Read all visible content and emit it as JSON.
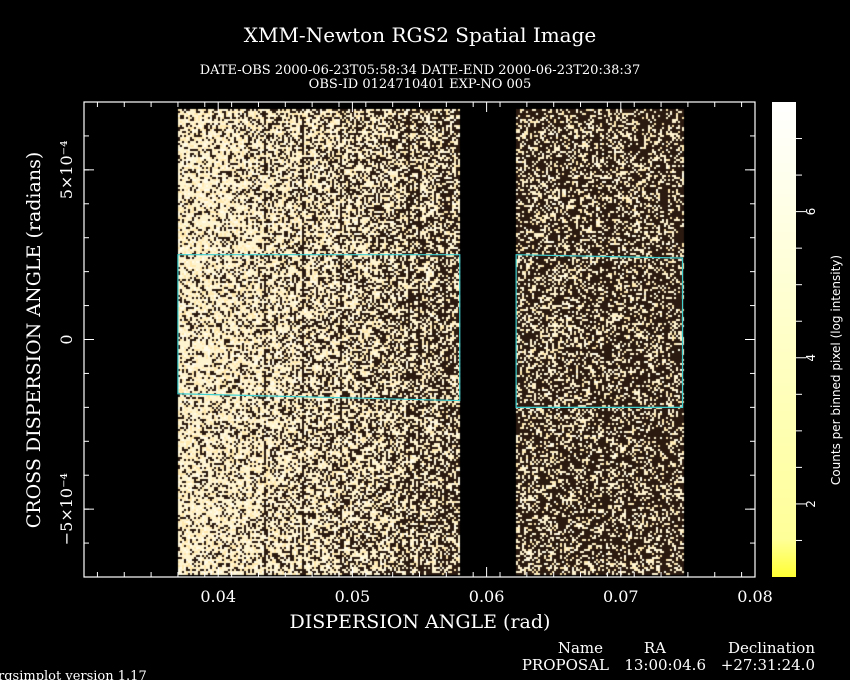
{
  "title": "XMM-Newton  RGS2 Spatial Image",
  "subtitle_line1": "DATE-OBS 2000-06-23T05:58:34   DATE-END 2000-06-23T20:38:37",
  "subtitle_line2": "OBS-ID 0124710401 EXP-NO 005",
  "version": "rgsimplot version 1.17",
  "info_table": {
    "headers": [
      "Name",
      "RA",
      "Declination"
    ],
    "row": [
      "PROPOSAL",
      "13:00:04.6",
      "+27:31:24.0"
    ],
    "row_color": "#40e0e0"
  },
  "chart_data": {
    "type": "heatmap",
    "xlabel": "DISPERSION ANGLE (rad)",
    "ylabel": "CROSS DISPERSION ANGLE (radians)",
    "xlim": [
      0.03,
      0.08
    ],
    "ylim": [
      -0.0007,
      0.0007
    ],
    "x_ticks": [
      0.04,
      0.05,
      0.06,
      0.07,
      0.08
    ],
    "x_tick_labels": [
      "0.04",
      "0.05",
      "0.06",
      "0.07",
      "0.08"
    ],
    "y_ticks": [
      -0.0005,
      0,
      0.0005
    ],
    "y_tick_labels": [
      "−5×10⁻⁴",
      "0",
      "5×10⁻⁴"
    ],
    "colorbar": {
      "label": "Counts per binned pixel (log intensity)",
      "range": [
        1,
        7.5
      ],
      "ticks": [
        2,
        4,
        6
      ],
      "tick_labels": [
        "2",
        "4",
        "6"
      ],
      "colors": [
        "#ffff33",
        "#ffffff"
      ]
    },
    "detector_regions": [
      {
        "x": [
          0.037,
          0.058
        ],
        "y": [
          -0.00069,
          0.00068
        ],
        "density_start": 0.8,
        "density_end": 0.42
      },
      {
        "x": [
          0.0622,
          0.0746
        ],
        "y": [
          -0.00069,
          0.00068
        ],
        "density_start": 0.35,
        "density_end": 0.3
      }
    ],
    "extraction_regions": [
      {
        "x": [
          0.037,
          0.058
        ],
        "y_top": [
          0.00025,
          0.00025
        ],
        "y_bottom": [
          -0.00016,
          -0.00018
        ],
        "color": "#40d0d0"
      },
      {
        "x": [
          0.0622,
          0.0746
        ],
        "y_top": [
          0.00025,
          0.00024
        ],
        "y_bottom": [
          -0.0002,
          -0.0002
        ],
        "color": "#40d0d0"
      }
    ]
  }
}
